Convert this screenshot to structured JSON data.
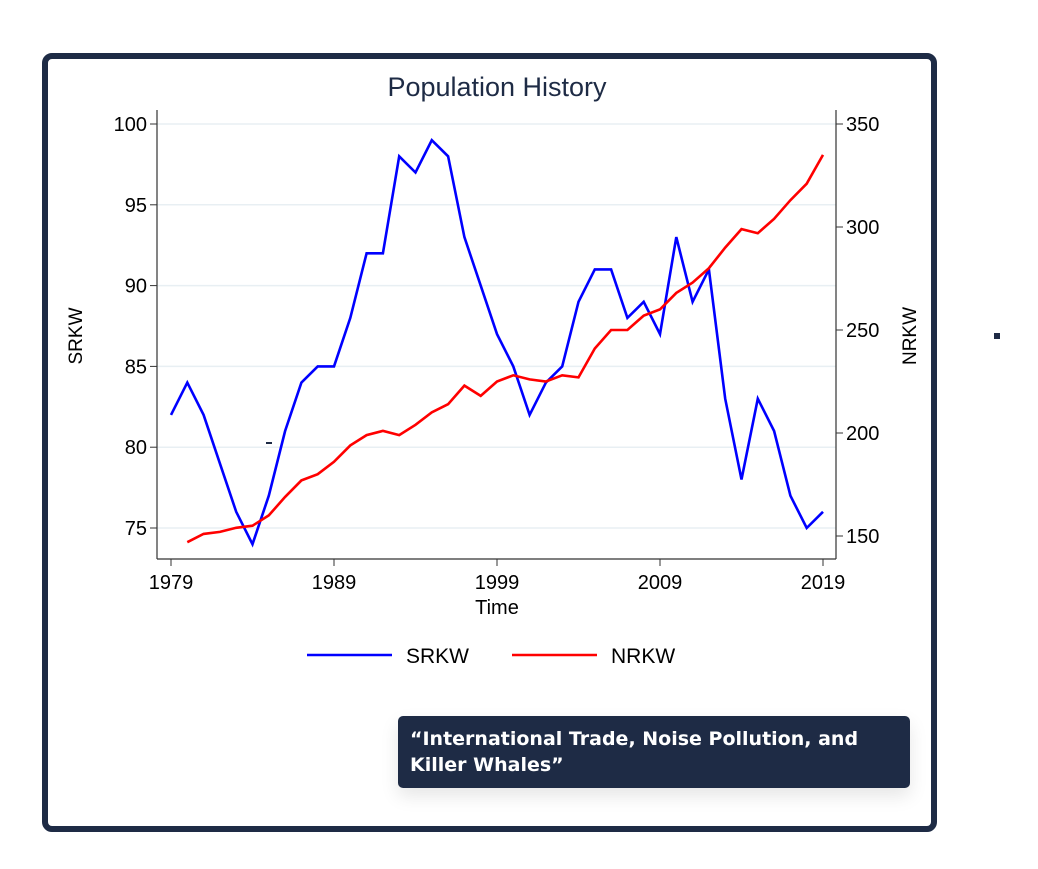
{
  "caption": {
    "text": "“International Trade, Noise Pollution, and Killer Whales”"
  },
  "colors": {
    "frame": "#1e2b45",
    "title": "#1e2b45",
    "srkw": "#0000ff",
    "nrkw": "#ff0000",
    "grid": "#e8eff3"
  },
  "chart_data": {
    "type": "line",
    "title": "Population History",
    "xlabel": "Time",
    "ylabel": "SRKW",
    "y2label": "NRKW",
    "xlim": [
      1979,
      2019
    ],
    "ylim": [
      75,
      100
    ],
    "y2lim": [
      150,
      350
    ],
    "xticks": [
      1979,
      1989,
      1999,
      2009,
      2019
    ],
    "yticks": [
      75,
      80,
      85,
      90,
      95,
      100
    ],
    "y2ticks": [
      150,
      200,
      250,
      300,
      350
    ],
    "grid": true,
    "legend": "bottom",
    "series": [
      {
        "name": "SRKW",
        "axis": "left",
        "x": [
          1979,
          1980,
          1981,
          1982,
          1983,
          1984,
          1985,
          1986,
          1987,
          1988,
          1989,
          1990,
          1991,
          1992,
          1993,
          1994,
          1995,
          1996,
          1997,
          1998,
          1999,
          2000,
          2001,
          2002,
          2003,
          2004,
          2005,
          2006,
          2007,
          2008,
          2009,
          2010,
          2011,
          2012,
          2013,
          2014,
          2015,
          2016,
          2017,
          2018,
          2019
        ],
        "values": [
          82,
          84,
          82,
          79,
          76,
          74,
          77,
          81,
          84,
          85,
          85,
          88,
          92,
          92,
          98,
          97,
          99,
          98,
          93,
          90,
          87,
          85,
          82,
          84,
          85,
          89,
          91,
          91,
          88,
          89,
          87,
          93,
          89,
          91,
          83,
          78,
          83,
          81,
          77,
          75,
          76
        ]
      },
      {
        "name": "NRKW",
        "axis": "right",
        "x": [
          1980,
          1981,
          1982,
          1983,
          1984,
          1985,
          1986,
          1987,
          1988,
          1989,
          1990,
          1991,
          1992,
          1993,
          1994,
          1995,
          1996,
          1997,
          1998,
          1999,
          2000,
          2001,
          2002,
          2003,
          2004,
          2005,
          2006,
          2007,
          2008,
          2009,
          2010,
          2011,
          2012,
          2013,
          2014,
          2015,
          2016,
          2017,
          2018,
          2019
        ],
        "values": [
          147,
          151,
          152,
          154,
          155,
          160,
          169,
          177,
          180,
          186,
          194,
          199,
          201,
          199,
          204,
          210,
          214,
          223,
          218,
          225,
          228,
          226,
          225,
          228,
          227,
          241,
          250,
          250,
          257,
          260,
          268,
          273,
          280,
          290,
          299,
          297,
          304,
          313,
          321,
          335
        ]
      }
    ]
  }
}
